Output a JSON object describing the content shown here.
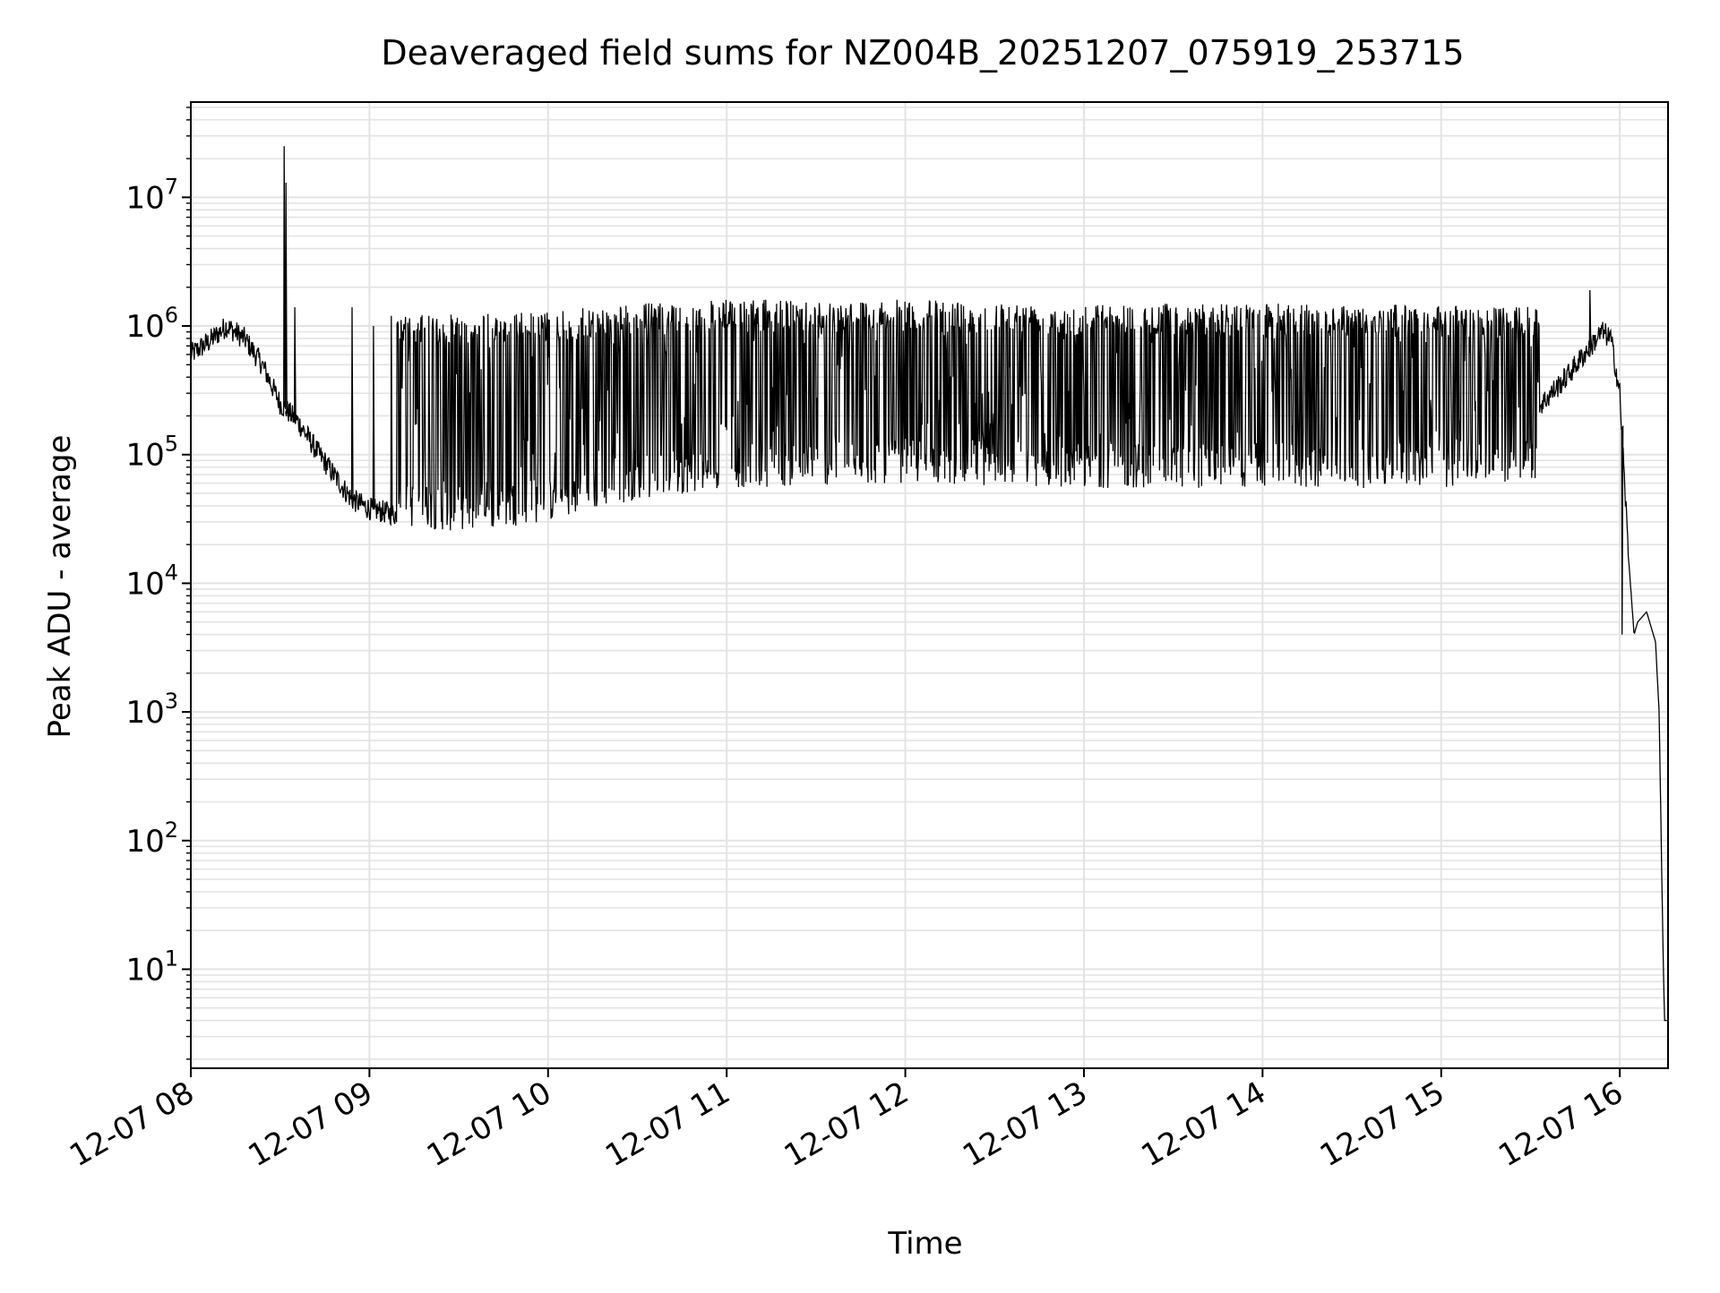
{
  "chart_data": {
    "type": "line",
    "title": "Deaveraged field sums for NZ004B_20251207_075919_253715",
    "xlabel": "Time",
    "ylabel": "Peak ADU - average",
    "yscale": "log",
    "ylim": [
      1.7,
      55000000
    ],
    "xlim_hours": [
      8.0,
      16.27
    ],
    "grid": true,
    "legend": "none",
    "line_color": "#000000",
    "x_ticks": [
      {
        "hour": 8,
        "label": "12-07 08"
      },
      {
        "hour": 9,
        "label": "12-07 09"
      },
      {
        "hour": 10,
        "label": "12-07 10"
      },
      {
        "hour": 11,
        "label": "12-07 11"
      },
      {
        "hour": 12,
        "label": "12-07 12"
      },
      {
        "hour": 13,
        "label": "12-07 13"
      },
      {
        "hour": 14,
        "label": "12-07 14"
      },
      {
        "hour": 15,
        "label": "12-07 15"
      },
      {
        "hour": 16,
        "label": "12-07 16"
      }
    ],
    "y_ticks": [
      {
        "exp": 1,
        "base": "10",
        "sup": "1"
      },
      {
        "exp": 2,
        "base": "10",
        "sup": "2"
      },
      {
        "exp": 3,
        "base": "10",
        "sup": "3"
      },
      {
        "exp": 4,
        "base": "10",
        "sup": "4"
      },
      {
        "exp": 5,
        "base": "10",
        "sup": "5"
      },
      {
        "exp": 6,
        "base": "10",
        "sup": "6"
      },
      {
        "exp": 7,
        "base": "10",
        "sup": "7"
      }
    ],
    "series": [
      {
        "name": "Peak ADU - average",
        "baseline": {
          "hours": [
            8.0,
            8.1,
            8.2,
            8.3,
            8.4,
            8.5,
            8.6,
            8.7,
            8.8,
            8.9,
            9.0,
            9.2,
            9.4,
            9.6,
            9.8,
            10.0,
            10.2,
            10.4,
            10.6,
            10.8,
            11.0,
            11.5,
            12.0,
            12.5,
            13.0,
            13.5,
            14.0,
            14.5,
            15.0,
            15.3,
            15.5,
            15.7,
            15.9,
            15.95,
            16.0,
            16.05,
            16.08,
            16.1,
            16.15,
            16.2,
            16.22,
            16.24,
            16.25,
            16.27
          ],
          "values": [
            600000,
            750000,
            1000000,
            800000,
            500000,
            250000,
            180000,
            110000,
            70000,
            45000,
            38000,
            33000,
            29000,
            30000,
            32000,
            40000,
            50000,
            60000,
            80000,
            100000,
            130000,
            200000,
            300000,
            250000,
            180000,
            140000,
            120000,
            110000,
            110000,
            130000,
            200000,
            400000,
            900000,
            800000,
            300000,
            15000,
            4000,
            5000,
            6000,
            3500,
            1000,
            20,
            4,
            4
          ]
        },
        "spikes": {
          "hours": [
            8.52,
            8.53,
            8.58,
            8.9,
            9.02,
            9.12,
            15.83,
            16.01
          ],
          "values": [
            25000000,
            13000000,
            1400000,
            1400000,
            1000000,
            1200000,
            1900000,
            4000
          ]
        },
        "oscillation_band": {
          "hour_range": [
            9.15,
            15.55
          ],
          "upper": {
            "hours": [
              9.15,
              10.0,
              10.5,
              11.0,
              12.0,
              13.0,
              14.0,
              15.0,
              15.55
            ],
            "values": [
              1200000,
              1300000,
              1500000,
              1600000,
              1600000,
              1500000,
              1500000,
              1450000,
              1400000
            ]
          },
          "lower": {
            "hours": [
              9.15,
              9.5,
              10.0,
              10.5,
              11.0,
              12.0,
              13.0,
              14.0,
              15.0,
              15.55
            ],
            "values": [
              28000,
              25000,
              30000,
              45000,
              55000,
              60000,
              55000,
              55000,
              55000,
              65000
            ]
          }
        }
      }
    ]
  }
}
